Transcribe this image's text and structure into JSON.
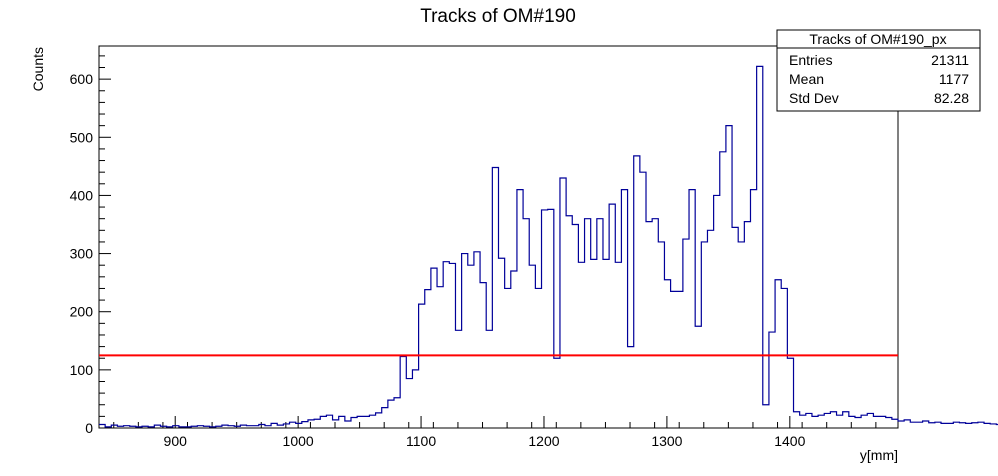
{
  "chart_data": {
    "type": "histogram",
    "title": "Tracks of OM#190",
    "xlabel": "y[mm]",
    "ylabel": "Counts",
    "xlim": [
      838,
      1488
    ],
    "ylim": [
      0,
      657
    ],
    "xticks": [
      900,
      1000,
      1100,
      1200,
      1300,
      1400
    ],
    "yticks": [
      0,
      100,
      200,
      300,
      400,
      500,
      600
    ],
    "bin_width": 5,
    "x_start": 838,
    "values": [
      6,
      2,
      5,
      3,
      4,
      3,
      2,
      3,
      2,
      5,
      3,
      2,
      4,
      2,
      2,
      3,
      4,
      3,
      2,
      3,
      5,
      4,
      3,
      5,
      4,
      4,
      6,
      4,
      8,
      5,
      7,
      10,
      8,
      11,
      14,
      15,
      20,
      22,
      14,
      20,
      12,
      18,
      20,
      20,
      22,
      26,
      35,
      48,
      52,
      123,
      85,
      100,
      213,
      238,
      275,
      243,
      286,
      283,
      168,
      300,
      280,
      303,
      250,
      168,
      448,
      292,
      240,
      270,
      410,
      360,
      280,
      240,
      375,
      376,
      120,
      430,
      365,
      350,
      285,
      360,
      290,
      360,
      290,
      385,
      285,
      410,
      140,
      468,
      440,
      355,
      360,
      320,
      255,
      235,
      235,
      325,
      410,
      175,
      320,
      340,
      400,
      475,
      520,
      345,
      320,
      355,
      410,
      622,
      40,
      165,
      255,
      240,
      120,
      28,
      22,
      25,
      20,
      22,
      25,
      28,
      22,
      28,
      20,
      18,
      22,
      25,
      20,
      20,
      18,
      15,
      12,
      14,
      10,
      10,
      12,
      9,
      10,
      8,
      8,
      10,
      9,
      8,
      9,
      10,
      8,
      7,
      6,
      7,
      8,
      9,
      8,
      7,
      6,
      8,
      7
    ],
    "threshold_line": {
      "y": 125,
      "color": "#ff0000"
    },
    "series_color": "#000099",
    "stats_box": {
      "title": "Tracks of OM#190_px",
      "rows": [
        {
          "label": "Entries",
          "value": "21311"
        },
        {
          "label": "Mean",
          "value": "1177"
        },
        {
          "label": "Std Dev",
          "value": "82.28"
        }
      ]
    }
  }
}
